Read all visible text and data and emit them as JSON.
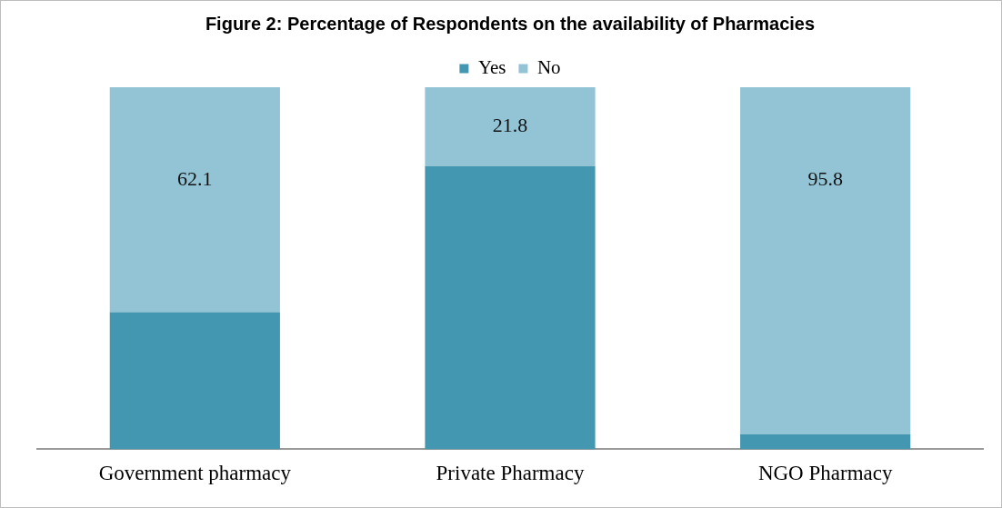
{
  "chart_data": {
    "type": "bar",
    "title": "Figure 2: Percentage of Respondents on the availability of Pharmacies",
    "categories": [
      "Government pharmacy",
      "Private Pharmacy",
      "NGO Pharmacy"
    ],
    "stacked": true,
    "legend": "top",
    "tick_labels": "x",
    "grid": false,
    "series": [
      {
        "name": "Yes",
        "color": "#4397b0",
        "values": [
          37.9,
          78.2,
          4.2
        ]
      },
      {
        "name": "No",
        "color": "#93c4d6",
        "values": [
          62.1,
          21.8,
          95.8
        ],
        "value_labels": [
          "62.1",
          "21.8",
          "95.8"
        ]
      }
    ]
  }
}
